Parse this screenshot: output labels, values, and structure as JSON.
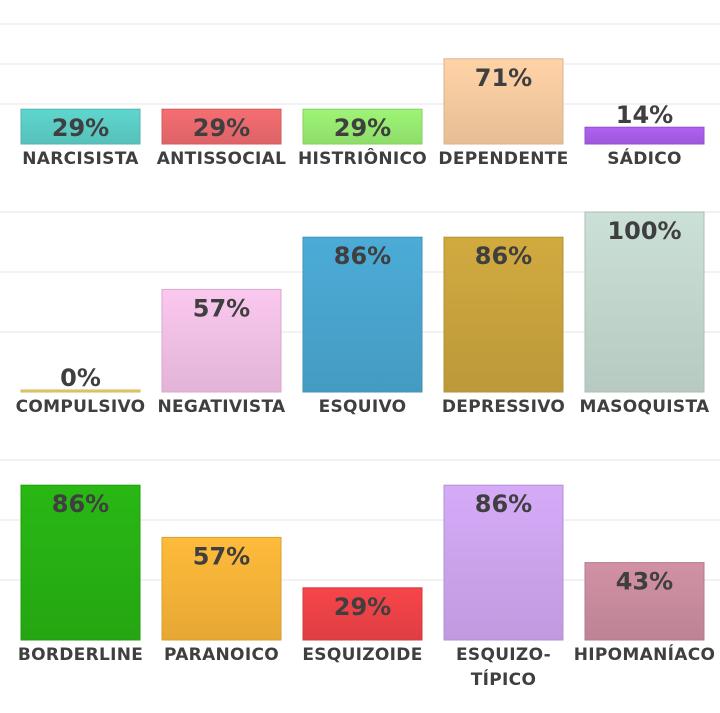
{
  "chart_data": [
    {
      "type": "bar",
      "categories": [
        "NARCISISTA",
        "ANTISSOCIAL",
        "HISTRIÔNICO",
        "DEPENDENTE",
        "SÁDICO"
      ],
      "values": [
        29,
        29,
        29,
        71,
        14
      ],
      "labels": [
        "29%",
        "29%",
        "29%",
        "71%",
        "14%"
      ],
      "colors": [
        "#5fd6cf",
        "#f56e72",
        "#9ef576",
        "#ffd3a6",
        "#b061f2"
      ],
      "ylim": [
        0,
        100
      ]
    },
    {
      "type": "bar",
      "categories": [
        "COMPULSIVO",
        "NEGATIVISTA",
        "ESQUIVO",
        "DEPRESSIVO",
        "MASOQUISTA"
      ],
      "values": [
        0,
        57,
        86,
        86,
        100
      ],
      "labels": [
        "0%",
        "57%",
        "86%",
        "86%",
        "100%"
      ],
      "colors": [
        "#f5d76e",
        "#fbc8ef",
        "#4cacd7",
        "#d1aa3f",
        "#cbe0d6"
      ],
      "ylim": [
        0,
        100
      ]
    },
    {
      "type": "bar",
      "categories": [
        "BORDERLINE",
        "PARANOICO",
        "ESQUIZOIDE",
        "ESQUIZO-\nTÍPICO",
        "HIPOMANÍACO"
      ],
      "values": [
        86,
        57,
        29,
        86,
        43
      ],
      "labels": [
        "86%",
        "57%",
        "29%",
        "86%",
        "43%"
      ],
      "colors": [
        "#29b814",
        "#ffbb3a",
        "#f7454a",
        "#d5abf8",
        "#d291a5"
      ],
      "ylim": [
        0,
        100
      ]
    }
  ]
}
